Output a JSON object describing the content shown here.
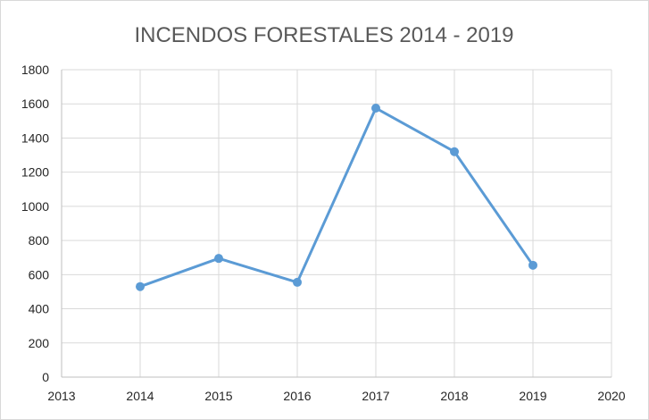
{
  "chart_data": {
    "type": "scatter",
    "title": "INCENDOS FORESTALES 2014 - 2019",
    "xlabel": "",
    "ylabel": "",
    "xlim": [
      2013,
      2020
    ],
    "ylim": [
      0,
      1800
    ],
    "x_ticks": [
      2013,
      2014,
      2015,
      2016,
      2017,
      2018,
      2019,
      2020
    ],
    "y_ticks": [
      0,
      200,
      400,
      600,
      800,
      1000,
      1200,
      1400,
      1600,
      1800
    ],
    "grid": true,
    "legend": "none",
    "series": [
      {
        "color": "#5b9bd5",
        "points": [
          {
            "x": 2014,
            "y": 530
          },
          {
            "x": 2015,
            "y": 695
          },
          {
            "x": 2016,
            "y": 555
          },
          {
            "x": 2017,
            "y": 1575
          },
          {
            "x": 2018,
            "y": 1320
          },
          {
            "x": 2019,
            "y": 655
          }
        ]
      }
    ]
  }
}
